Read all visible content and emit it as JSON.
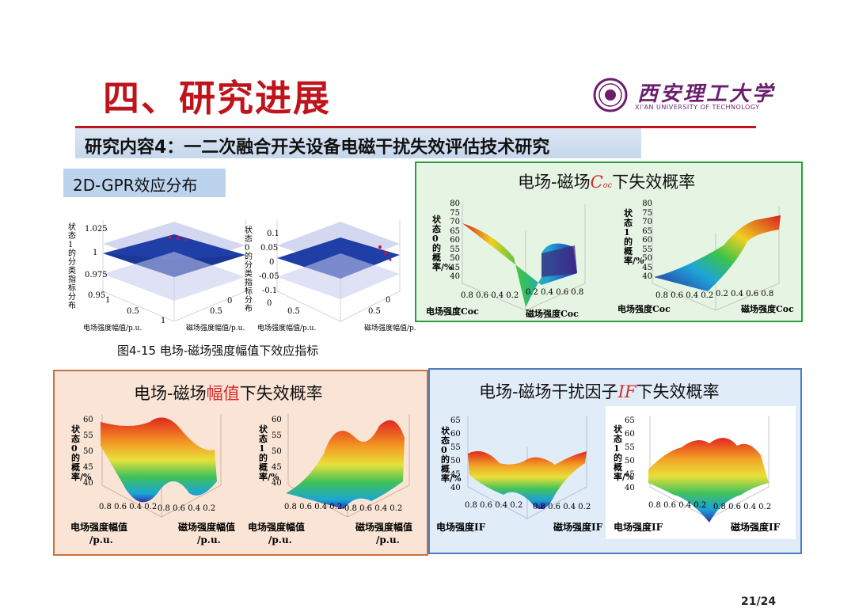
{
  "header": {
    "title": "四、研究进展",
    "subtitle": "研究内容4：一二次融合开关设备电磁干扰失效评估技术研究"
  },
  "logo": {
    "name_cn": "西安理工大学",
    "name_en": "XI'AN UNIVERSITY OF TECHNOLOGY"
  },
  "gpr": {
    "label": "2D-GPR效应分布",
    "caption": "图4-15 电场-磁场强度幅值下效应指标",
    "left_plot": {
      "zlabel": "状态1的分类指标分布",
      "zticks": [
        "1.025",
        "1",
        "0.975",
        "0.95"
      ],
      "xlabel": "电场强度幅值/p.u.",
      "ylabel": "磁场强度幅值/p.u.",
      "ticks": [
        "0",
        "0.5",
        "1"
      ]
    },
    "right_plot": {
      "zlabel": "状态0的分类指标分布",
      "zticks": [
        "0.1",
        "0.05",
        "0",
        "-0.05",
        "-0.1"
      ],
      "xlabel": "电场强度幅值/p.u.",
      "ylabel": "磁场强度幅值/p.u.",
      "ticks": [
        "0",
        "0.5",
        "1"
      ]
    }
  },
  "coc_panel": {
    "title_pre": "电场-磁场",
    "title_sym": "C",
    "title_sub": "oc",
    "title_post": "下失效概率",
    "left_plot": {
      "zlabel": "状态0的概率/%",
      "zticks": [
        "80",
        "75",
        "70",
        "65",
        "60",
        "55",
        "50",
        "45",
        "40"
      ],
      "xlabel": "电场强度Coc",
      "ylabel": "磁场强度Coc",
      "xticks": [
        "0.8",
        "0.6",
        "0.4",
        "0.2"
      ],
      "yticks": [
        "0.8",
        "0.6",
        "0.4",
        "0.2"
      ]
    },
    "right_plot": {
      "zlabel": "状态1的概率/%",
      "zticks": [
        "80",
        "75",
        "70",
        "65",
        "60",
        "55",
        "50",
        "45",
        "40"
      ],
      "xlabel": "电场强度Coc",
      "ylabel": "磁场强度Coc",
      "xticks": [
        "0.8",
        "0.6",
        "0.4",
        "0.2"
      ],
      "yticks": [
        "0.8",
        "0.6",
        "0.4",
        "0.2"
      ]
    }
  },
  "amp_panel": {
    "title_pre": "电场-磁场",
    "title_red": "幅值",
    "title_post": "下失效概率",
    "left_plot": {
      "zlabel": "状态0的概率/%",
      "zticks": [
        "60",
        "55",
        "50",
        "45",
        "40"
      ],
      "xlabel": "电场强度幅值",
      "ylabel": "磁场强度幅值",
      "unit": "/p.u.",
      "xticks": [
        "0.8",
        "0.6",
        "0.4",
        "0.2"
      ],
      "yticks": [
        "0.8",
        "0.6",
        "0.4",
        "0.2"
      ]
    },
    "right_plot": {
      "zlabel": "状态1的概率/%",
      "zticks": [
        "60",
        "55",
        "50",
        "45",
        "40"
      ],
      "xlabel": "电场强度幅值",
      "ylabel": "磁场强度幅值",
      "unit": "/p.u.",
      "xticks": [
        "0.8",
        "0.6",
        "0.4",
        "0.2"
      ],
      "yticks": [
        "0.8",
        "0.6",
        "0.4",
        "0.2"
      ]
    }
  },
  "if_panel": {
    "title_pre": "电场-磁场干扰因子",
    "title_sym": "IF",
    "title_post": "下失效概率",
    "left_plot": {
      "zlabel": "状态0的概率/%",
      "zticks": [
        "65",
        "60",
        "55",
        "50",
        "45",
        "40"
      ],
      "xlabel": "电场强度IF",
      "ylabel": "磁场强度IF",
      "xticks": [
        "0.8",
        "0.6",
        "0.4",
        "0.2"
      ],
      "yticks": [
        "0.8",
        "0.6",
        "0.4",
        "0.2"
      ]
    },
    "right_plot": {
      "zlabel": "状态1的概率/%",
      "zticks": [
        "65",
        "60",
        "55",
        "50",
        "45",
        "40"
      ],
      "xlabel": "电场强度IF",
      "ylabel": "磁场强度IF",
      "xticks": [
        "0.8",
        "0.6",
        "0.4",
        "0.2"
      ],
      "yticks": [
        "0.8",
        "0.6",
        "0.4",
        "0.2"
      ]
    }
  },
  "page_number": "21/24",
  "colors": {
    "title_red": "#c0141c",
    "green_border": "#2d9d3b",
    "orange_border": "#c8703e",
    "blue_border": "#4a7cc0"
  }
}
